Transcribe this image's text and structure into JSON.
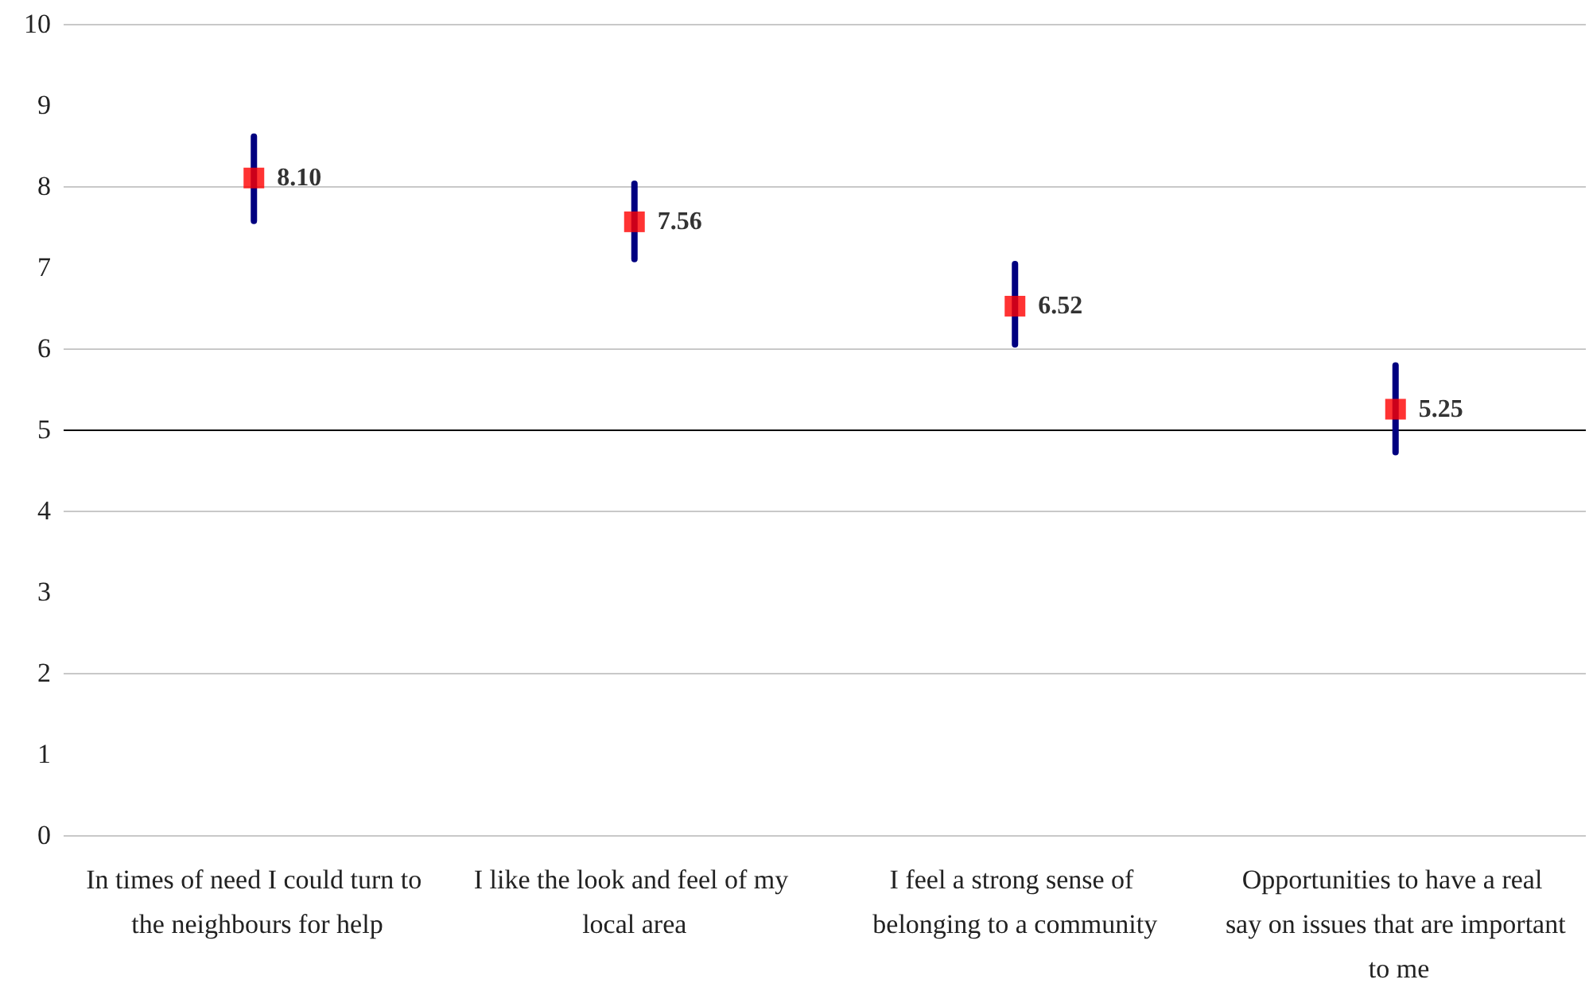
{
  "chart_data": {
    "type": "scatter",
    "categories": [
      "In times of need I could turn to the neighbours for help",
      "I like the look and feel of my local area",
      "I feel a strong sense of belonging to a community",
      "Opportunities to have a real say on issues that are important to me"
    ],
    "series": [
      {
        "color": "#ff0000",
        "values": [
          8.1,
          7.56,
          6.52,
          5.25
        ],
        "value_labels": [
          "8.10",
          "7.56",
          "6.52",
          "5.25"
        ],
        "errors": [
          [
            7.57,
            8.61
          ],
          [
            7.1,
            8.03
          ],
          [
            6.05,
            7.04
          ],
          [
            4.72,
            5.79
          ]
        ]
      }
    ],
    "ylim": [
      0,
      10
    ],
    "yticks": [
      0,
      1,
      2,
      3,
      4,
      5,
      6,
      7,
      8,
      9,
      10
    ],
    "grid": "y",
    "marker": "square",
    "ref_lines": [
      {
        "axis": "y",
        "value": 5,
        "color": "#000000",
        "line_style": "solid"
      }
    ]
  }
}
